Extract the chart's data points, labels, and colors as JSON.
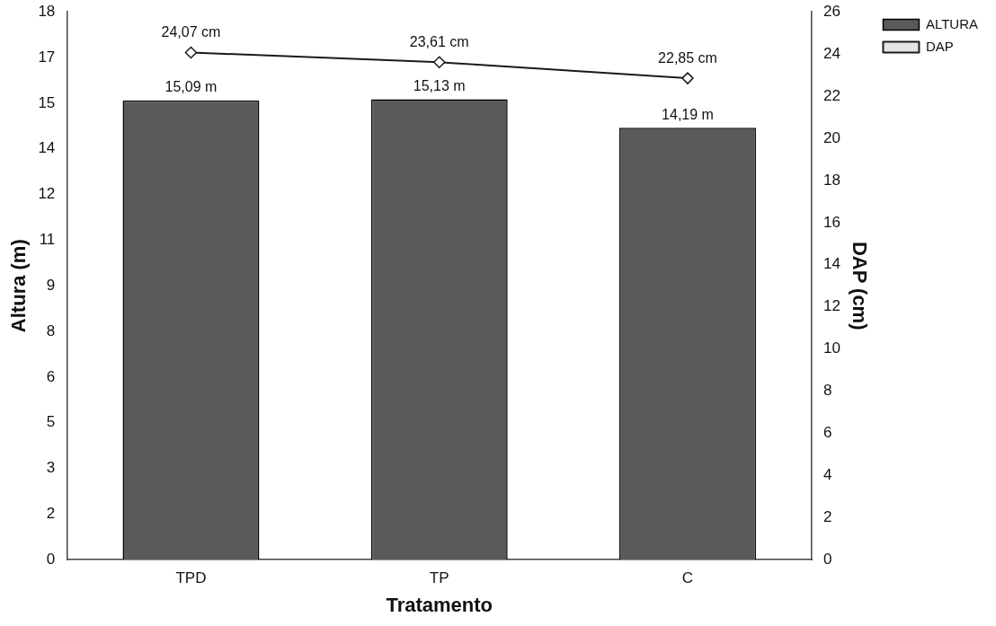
{
  "chart_data": {
    "type": "bar",
    "xlabel": "Tratamento",
    "ylabel": "Altura (m)",
    "y2label": "DAP (cm)",
    "categories": [
      "TPD",
      "TP",
      "C"
    ],
    "series": [
      {
        "name": "ALTURA",
        "color": "#5a5a5a",
        "values": [
          15.09,
          15.13,
          14.19
        ],
        "value_labels": [
          "15,09 m",
          "15,13 m",
          "14,19 m"
        ]
      },
      {
        "name": "DAP",
        "type": "line",
        "axis": "y2",
        "color": "#1a1a1a",
        "marker": "diamond",
        "values": [
          24.07,
          23.61,
          22.85
        ],
        "value_labels": [
          "24,07 cm",
          "23,61 cm",
          "22,85 cm"
        ]
      }
    ],
    "ylim": [
      0,
      18
    ],
    "yticks": [
      0,
      {
        "value": 1.5,
        "label": "2"
      },
      3,
      {
        "value": 4.5,
        "label": "5"
      },
      6,
      {
        "value": 7.5,
        "label": "8"
      },
      9,
      {
        "value": 10.5,
        "label": "11"
      },
      12,
      {
        "value": 13.5,
        "label": "14"
      },
      15,
      {
        "value": 16.5,
        "label": "17"
      },
      18
    ],
    "y2lim": [
      0,
      26
    ],
    "y2ticks": [
      0,
      2,
      4,
      6,
      8,
      10,
      12,
      14,
      16,
      18,
      20,
      22,
      24,
      26
    ],
    "grid": false,
    "legend": "right"
  }
}
